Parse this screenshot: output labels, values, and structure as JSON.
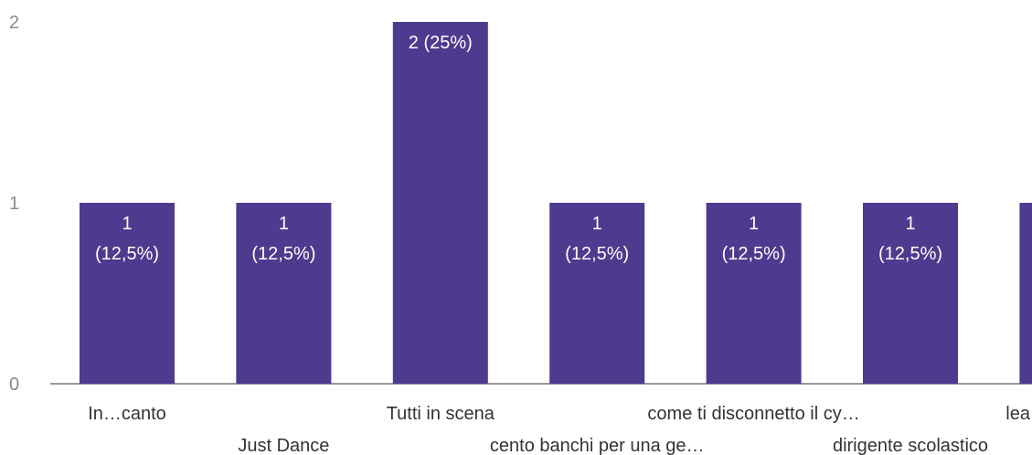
{
  "chart_data": {
    "type": "bar",
    "categories": [
      "In…canto",
      "Just Dance",
      "Tutti in scena",
      "cento banchi per una ge…",
      "come ti disconnetto il cy…",
      "dirigente scolastico",
      "lea"
    ],
    "values": [
      1,
      1,
      2,
      1,
      1,
      1,
      1
    ],
    "data_labels": [
      [
        "1",
        "(12,5%)"
      ],
      [
        "1",
        "(12,5%)"
      ],
      [
        "2 (25%)"
      ],
      [
        "1",
        "(12,5%)"
      ],
      [
        "1",
        "(12,5%)"
      ],
      [
        "1",
        "(12,5%)"
      ],
      []
    ],
    "yticks": [
      "0",
      "1",
      "2"
    ],
    "ylim": [
      0,
      2
    ],
    "title": "",
    "xlabel": "",
    "ylabel": "",
    "grid": false,
    "colors": {
      "bar": "#4e3a8e",
      "axis": "#777777",
      "tick_text": "#8a8a8a",
      "category_text": "#333333",
      "label_text": "#ffffff"
    }
  }
}
